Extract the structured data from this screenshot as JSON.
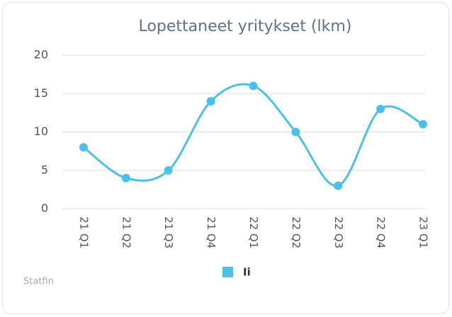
{
  "chart_data": {
    "type": "line",
    "title": "Lopettaneet yritykset (lkm)",
    "categories": [
      "21 Q1",
      "21 Q2",
      "21 Q3",
      "21 Q4",
      "22 Q1",
      "22 Q2",
      "22 Q3",
      "22 Q4",
      "23 Q1"
    ],
    "series": [
      {
        "name": "Ii",
        "color": "#4ec0e8",
        "values": [
          8,
          4,
          5,
          14,
          16,
          10,
          3,
          13,
          11
        ]
      }
    ],
    "ylim": [
      0,
      20
    ],
    "yticks": [
      0,
      5,
      10,
      15,
      20
    ],
    "grid": true,
    "smooth": true,
    "legend": "bottom",
    "credit": "Statfin"
  }
}
